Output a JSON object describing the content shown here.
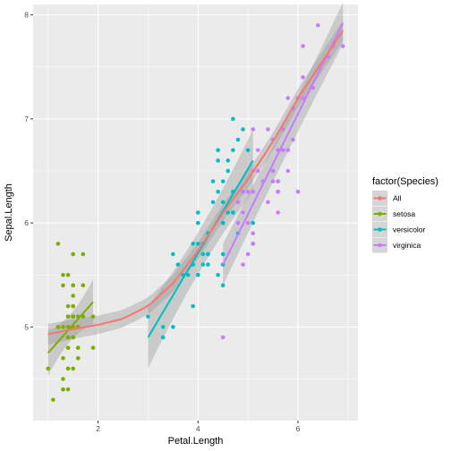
{
  "chart_data": {
    "type": "scatter",
    "title": "",
    "xlabel": "Petal.Length",
    "ylabel": "Sepal.Length",
    "xlim": [
      0.7,
      7.2
    ],
    "ylim": [
      4.1,
      8.1
    ],
    "xticks": [
      2,
      4,
      6
    ],
    "yticks": [
      5,
      6,
      7,
      8
    ],
    "grid": true,
    "legend": {
      "title": "factor(Species)",
      "position": "right",
      "entries": [
        "All",
        "setosa",
        "versicolor",
        "virginica"
      ]
    },
    "colors": {
      "All": "#F8766D",
      "setosa": "#7CAE00",
      "versicolor": "#00BFC4",
      "virginica": "#C77CFF",
      "ribbon": "#999999",
      "panel": "#EBEBEB"
    },
    "series": [
      {
        "name": "setosa",
        "points": [
          [
            1.4,
            5.1
          ],
          [
            1.4,
            4.9
          ],
          [
            1.3,
            4.7
          ],
          [
            1.5,
            4.6
          ],
          [
            1.4,
            5.0
          ],
          [
            1.7,
            5.4
          ],
          [
            1.4,
            4.6
          ],
          [
            1.5,
            5.0
          ],
          [
            1.4,
            4.4
          ],
          [
            1.5,
            4.9
          ],
          [
            1.5,
            5.4
          ],
          [
            1.6,
            4.8
          ],
          [
            1.4,
            4.8
          ],
          [
            1.1,
            4.3
          ],
          [
            1.2,
            5.8
          ],
          [
            1.5,
            5.7
          ],
          [
            1.3,
            5.4
          ],
          [
            1.4,
            5.1
          ],
          [
            1.7,
            5.7
          ],
          [
            1.5,
            5.1
          ],
          [
            1.7,
            5.4
          ],
          [
            1.5,
            5.1
          ],
          [
            1.0,
            4.6
          ],
          [
            1.7,
            5.1
          ],
          [
            1.9,
            4.8
          ],
          [
            1.6,
            5.0
          ],
          [
            1.6,
            5.0
          ],
          [
            1.5,
            5.2
          ],
          [
            1.4,
            5.2
          ],
          [
            1.6,
            4.7
          ],
          [
            1.6,
            4.8
          ],
          [
            1.5,
            5.4
          ],
          [
            1.5,
            5.2
          ],
          [
            1.4,
            5.5
          ],
          [
            1.5,
            4.9
          ],
          [
            1.2,
            5.0
          ],
          [
            1.3,
            5.5
          ],
          [
            1.4,
            4.9
          ],
          [
            1.3,
            4.4
          ],
          [
            1.5,
            5.1
          ],
          [
            1.3,
            5.0
          ],
          [
            1.3,
            4.5
          ],
          [
            1.3,
            4.4
          ],
          [
            1.6,
            5.0
          ],
          [
            1.9,
            5.1
          ],
          [
            1.4,
            4.8
          ],
          [
            1.6,
            5.1
          ],
          [
            1.4,
            4.6
          ],
          [
            1.5,
            5.3
          ],
          [
            1.4,
            5.0
          ]
        ],
        "fit": [
          [
            1.0,
            4.75
          ],
          [
            1.9,
            5.24
          ]
        ],
        "band": [
          0.13,
          0.22
        ]
      },
      {
        "name": "versicolor",
        "points": [
          [
            4.7,
            7.0
          ],
          [
            4.5,
            6.4
          ],
          [
            4.9,
            6.9
          ],
          [
            4.0,
            5.5
          ],
          [
            4.6,
            6.5
          ],
          [
            4.5,
            5.7
          ],
          [
            4.7,
            6.3
          ],
          [
            3.3,
            4.9
          ],
          [
            4.6,
            6.6
          ],
          [
            3.9,
            5.2
          ],
          [
            3.5,
            5.0
          ],
          [
            4.2,
            5.9
          ],
          [
            4.0,
            6.0
          ],
          [
            4.7,
            6.1
          ],
          [
            3.6,
            5.6
          ],
          [
            4.4,
            6.7
          ],
          [
            4.5,
            5.6
          ],
          [
            4.1,
            5.8
          ],
          [
            4.5,
            6.2
          ],
          [
            3.9,
            5.6
          ],
          [
            4.8,
            5.9
          ],
          [
            4.0,
            6.1
          ],
          [
            4.9,
            6.3
          ],
          [
            4.7,
            6.1
          ],
          [
            4.3,
            6.4
          ],
          [
            4.4,
            6.6
          ],
          [
            4.8,
            6.8
          ],
          [
            5.0,
            6.7
          ],
          [
            4.5,
            6.0
          ],
          [
            3.5,
            5.7
          ],
          [
            3.8,
            5.5
          ],
          [
            3.7,
            5.5
          ],
          [
            3.9,
            5.8
          ],
          [
            5.1,
            6.0
          ],
          [
            4.5,
            5.4
          ],
          [
            4.5,
            6.0
          ],
          [
            4.7,
            6.7
          ],
          [
            4.4,
            6.3
          ],
          [
            4.1,
            5.6
          ],
          [
            4.0,
            5.5
          ],
          [
            4.4,
            5.5
          ],
          [
            4.6,
            6.1
          ],
          [
            4.0,
            5.8
          ],
          [
            3.3,
            5.0
          ],
          [
            4.2,
            5.6
          ],
          [
            4.2,
            5.7
          ],
          [
            4.2,
            5.7
          ],
          [
            4.3,
            6.2
          ],
          [
            3.0,
            5.1
          ],
          [
            4.1,
            5.7
          ]
        ],
        "fit": [
          [
            3.0,
            4.9
          ],
          [
            5.1,
            6.6
          ]
        ],
        "band": [
          0.2,
          0.3
        ]
      },
      {
        "name": "virginica",
        "points": [
          [
            6.0,
            6.3
          ],
          [
            5.1,
            5.8
          ],
          [
            5.9,
            7.1
          ],
          [
            5.6,
            6.3
          ],
          [
            5.8,
            6.5
          ],
          [
            6.6,
            7.6
          ],
          [
            4.5,
            4.9
          ],
          [
            6.3,
            7.3
          ],
          [
            5.8,
            6.7
          ],
          [
            6.1,
            7.2
          ],
          [
            5.1,
            6.5
          ],
          [
            5.3,
            6.4
          ],
          [
            5.5,
            6.8
          ],
          [
            5.0,
            5.7
          ],
          [
            5.1,
            5.8
          ],
          [
            5.3,
            6.4
          ],
          [
            5.5,
            6.5
          ],
          [
            6.7,
            7.7
          ],
          [
            6.9,
            7.7
          ],
          [
            5.0,
            6.0
          ],
          [
            5.7,
            6.9
          ],
          [
            4.9,
            5.6
          ],
          [
            6.7,
            7.7
          ],
          [
            4.9,
            6.3
          ],
          [
            5.7,
            6.7
          ],
          [
            6.0,
            7.2
          ],
          [
            4.8,
            6.2
          ],
          [
            4.9,
            6.1
          ],
          [
            5.6,
            6.4
          ],
          [
            5.8,
            7.2
          ],
          [
            6.1,
            7.4
          ],
          [
            6.4,
            7.9
          ],
          [
            5.6,
            6.4
          ],
          [
            5.1,
            6.3
          ],
          [
            5.6,
            6.1
          ],
          [
            6.1,
            7.7
          ],
          [
            5.6,
            6.3
          ],
          [
            5.5,
            6.4
          ],
          [
            4.8,
            6.0
          ],
          [
            5.4,
            6.9
          ],
          [
            5.6,
            6.7
          ],
          [
            5.1,
            6.9
          ],
          [
            5.1,
            5.8
          ],
          [
            5.9,
            6.8
          ],
          [
            5.7,
            6.7
          ],
          [
            5.2,
            6.7
          ],
          [
            5.0,
            6.3
          ],
          [
            5.2,
            6.5
          ],
          [
            5.4,
            6.2
          ],
          [
            5.1,
            5.9
          ]
        ],
        "fit": [
          [
            4.5,
            5.6
          ],
          [
            6.9,
            7.92
          ]
        ],
        "band": [
          0.17,
          0.2
        ]
      },
      {
        "name": "All",
        "points": [],
        "fit": [
          [
            1.0,
            4.93
          ],
          [
            1.5,
            4.98
          ],
          [
            2.0,
            5.02
          ],
          [
            2.5,
            5.08
          ],
          [
            3.0,
            5.2
          ],
          [
            3.5,
            5.42
          ],
          [
            4.0,
            5.73
          ],
          [
            4.5,
            6.1
          ],
          [
            5.0,
            6.42
          ],
          [
            5.5,
            6.78
          ],
          [
            6.0,
            7.2
          ],
          [
            6.5,
            7.56
          ],
          [
            6.9,
            7.85
          ]
        ],
        "band": [
          0.08,
          0.1
        ]
      }
    ]
  }
}
